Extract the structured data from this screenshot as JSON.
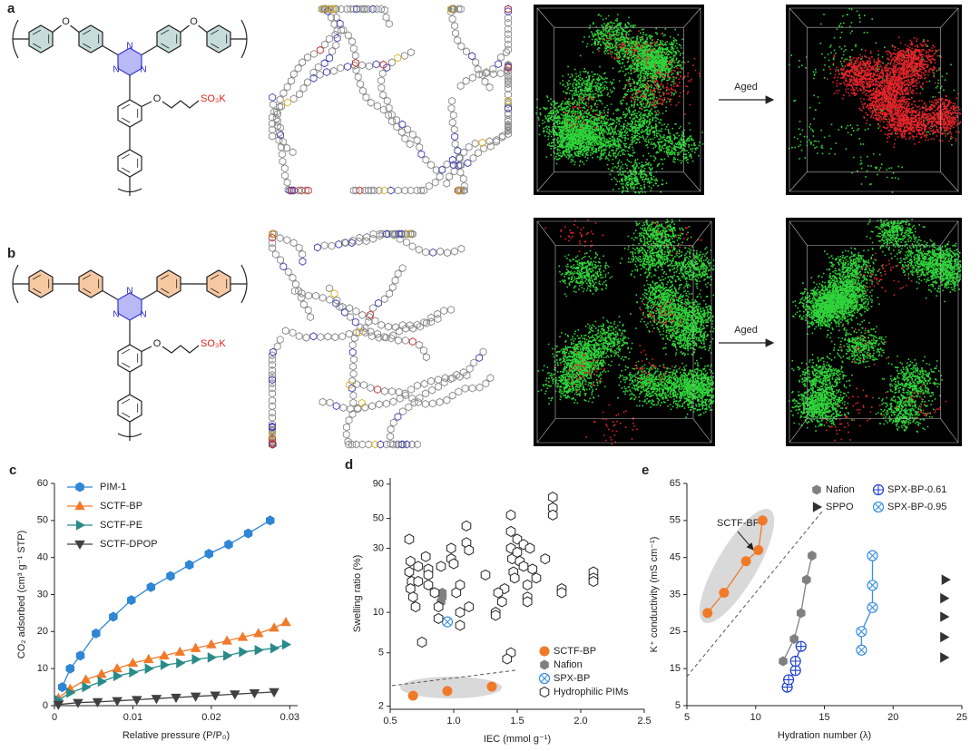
{
  "panels": [
    {
      "label": "a",
      "aged_label": "Aged"
    },
    {
      "label": "b",
      "aged_label": "Aged"
    }
  ],
  "structure_labels": {
    "oxygen": "O",
    "nitrogen": "N",
    "sulfonate": "SO₃K"
  },
  "chart_data": [
    {
      "type": "line",
      "panel_label": "c",
      "xlabel": "Relative pressure (P/P₀)",
      "ylabel": "CO₂ adsorbed (cm³ g⁻¹ STP)",
      "xlim": [
        0,
        0.031
      ],
      "xticks": [
        0,
        0.01,
        0.02,
        0.03
      ],
      "ylim": [
        0,
        60
      ],
      "yticks": [
        0,
        10,
        20,
        30,
        40,
        50,
        60
      ],
      "log_y": false,
      "legend": "upper left",
      "series": [
        {
          "name": "PIM-1",
          "color": "#2f86d4",
          "marker": "hexagon",
          "line": true,
          "x": [
            0.001,
            0.002,
            0.0033,
            0.0053,
            0.0075,
            0.0098,
            0.0123,
            0.0148,
            0.0172,
            0.0197,
            0.0222,
            0.0247,
            0.0275
          ],
          "values": [
            5,
            10,
            13.5,
            19.5,
            24,
            28.5,
            32,
            35,
            38,
            41,
            43.5,
            46.5,
            50
          ]
        },
        {
          "name": "SCTF-BP",
          "color": "#f07a2a",
          "marker": "triangle-up",
          "line": true,
          "x": [
            0.0005,
            0.002,
            0.004,
            0.006,
            0.008,
            0.01,
            0.012,
            0.014,
            0.016,
            0.018,
            0.02,
            0.022,
            0.024,
            0.026,
            0.028,
            0.0295
          ],
          "values": [
            2,
            4.5,
            7,
            8.5,
            10,
            11.5,
            12.5,
            13.5,
            14.5,
            15.5,
            16.5,
            17.5,
            18.5,
            19.5,
            21,
            22.5
          ]
        },
        {
          "name": "SCTF-PE",
          "color": "#2a8a8a",
          "marker": "triangle-right",
          "line": true,
          "x": [
            0.0005,
            0.002,
            0.004,
            0.006,
            0.008,
            0.01,
            0.012,
            0.014,
            0.016,
            0.018,
            0.02,
            0.022,
            0.024,
            0.026,
            0.028,
            0.0295
          ],
          "values": [
            1.5,
            3.5,
            5,
            6.5,
            8,
            9,
            10,
            11,
            11.5,
            12.5,
            13,
            13.5,
            14.5,
            15,
            15.5,
            16.5
          ]
        },
        {
          "name": "SCTF-DPOP",
          "color": "#404040",
          "marker": "triangle-down",
          "line": true,
          "x": [
            0.0005,
            0.003,
            0.0055,
            0.008,
            0.0105,
            0.013,
            0.0155,
            0.018,
            0.0205,
            0.023,
            0.0255,
            0.028
          ],
          "values": [
            0.3,
            0.8,
            1,
            1.3,
            1.6,
            1.9,
            2.2,
            2.5,
            2.8,
            3.1,
            3.4,
            3.7
          ]
        }
      ]
    },
    {
      "type": "scatter",
      "panel_label": "d",
      "xlabel": "IEC (mmol g⁻¹)",
      "ylabel": "Swelling ratio (%)",
      "xlim": [
        0.5,
        2.5
      ],
      "xticks": [
        0.5,
        {
          "value": 1.0,
          "label": "1.0"
        },
        1.5,
        {
          "value": 2.0,
          "label": "2.0"
        },
        2.5
      ],
      "ylim": [
        1.9,
        100
      ],
      "yticks": [
        2,
        5,
        10,
        30,
        50,
        90
      ],
      "log_y": true,
      "legend": "lower middle",
      "series": [
        {
          "name": "SCTF-BP",
          "color": "#f07a2a",
          "marker": "circle",
          "line": false,
          "x": [
            0.68,
            0.95,
            1.3
          ],
          "values": [
            2.4,
            2.6,
            2.8
          ]
        },
        {
          "name": "Nafion",
          "color": "#808080",
          "marker": "hexagon",
          "line": false,
          "x": [
            0.9,
            0.91,
            0.91
          ],
          "values": [
            12,
            13,
            14
          ]
        },
        {
          "name": "SPX-BP",
          "color": "#3a8fe0",
          "marker": "circle-x",
          "line": false,
          "x": [
            0.95
          ],
          "values": [
            8.5
          ]
        },
        {
          "name": "Hydrophilic PIMs",
          "color": "#222222",
          "marker": "hexagon-open",
          "line": false,
          "x": [
            0.65,
            0.65,
            0.66,
            0.67,
            0.66,
            0.68,
            0.7,
            0.72,
            0.72,
            0.75,
            0.78,
            0.8,
            0.8,
            0.8,
            0.85,
            0.88,
            0.88,
            0.9,
            0.98,
            0.98,
            1.0,
            1.02,
            1.05,
            1.05,
            1.05,
            1.1,
            1.1,
            1.12,
            1.12,
            1.25,
            1.33,
            1.33,
            1.45,
            1.45,
            1.45,
            1.46,
            1.47,
            1.48,
            1.5,
            1.5,
            1.52,
            1.55,
            1.55,
            1.58,
            1.58,
            1.58,
            1.6,
            1.62,
            1.65,
            1.72,
            1.78,
            1.78,
            1.78,
            1.85,
            1.85,
            2.1,
            2.1,
            2.1,
            1.45,
            1.42,
            1.4,
            1.38,
            1.35
          ],
          "values": [
            35,
            20,
            24,
            17,
            15,
            13,
            11,
            22,
            17,
            6,
            26,
            21,
            19,
            16,
            14,
            11,
            9,
            22,
            30,
            25,
            23,
            14,
            16,
            10,
            8,
            44,
            33,
            29,
            11,
            19,
            10,
            9.5,
            53,
            40,
            30,
            25,
            20,
            18,
            35,
            28,
            24,
            32,
            22,
            16,
            13,
            12,
            30,
            21,
            18,
            25,
            72,
            60,
            53,
            15,
            14,
            20,
            18,
            17,
            5,
            4.5,
            15,
            12,
            14
          ]
        }
      ]
    },
    {
      "type": "line",
      "panel_label": "e",
      "xlabel": "Hydration number (λ)",
      "ylabel": "K⁺ conductivity (mS cm⁻¹)",
      "xlim": [
        5,
        25
      ],
      "xticks": [
        5,
        10,
        15,
        20,
        25
      ],
      "ylim": [
        5,
        65
      ],
      "yticks": [
        5,
        15,
        25,
        35,
        45,
        55,
        65
      ],
      "log_y": false,
      "legend": "upper right",
      "legend_columns": 2,
      "annotation": "SCTF-BP",
      "series": [
        {
          "color": "#f07a2a",
          "marker": "circle",
          "line": true,
          "x": [
            6.5,
            7.7,
            9.3,
            10.2,
            10.5
          ],
          "values": [
            30,
            35.5,
            44,
            47,
            55
          ]
        },
        {
          "name": "Nafion",
          "color": "#808080",
          "marker": "hexagon",
          "line": true,
          "x": [
            12,
            12.8,
            13.3,
            13.7,
            14.1
          ],
          "values": [
            17,
            23,
            30,
            39,
            45.5
          ]
        },
        {
          "name": "SPX-BP-0.61",
          "color": "#1f3fd0",
          "marker": "circle-plus",
          "line": true,
          "x": [
            12.3,
            12.4,
            12.9,
            12.9,
            13.3
          ],
          "values": [
            10,
            12,
            14.5,
            17,
            21
          ]
        },
        {
          "name": "SPPO",
          "color": "#333333",
          "marker": "triangle-right",
          "line": false,
          "x": [
            23.7,
            23.7,
            23.7,
            23.7,
            23.8
          ],
          "values": [
            18,
            23.5,
            29,
            34,
            39
          ]
        },
        {
          "name": "SPX-BP-0.95",
          "color": "#3a8fe0",
          "marker": "circle-x",
          "line": true,
          "x": [
            17.7,
            17.7,
            18.5,
            18.5,
            18.5
          ],
          "values": [
            20,
            25,
            31.5,
            37.5,
            45.5
          ]
        }
      ]
    }
  ]
}
